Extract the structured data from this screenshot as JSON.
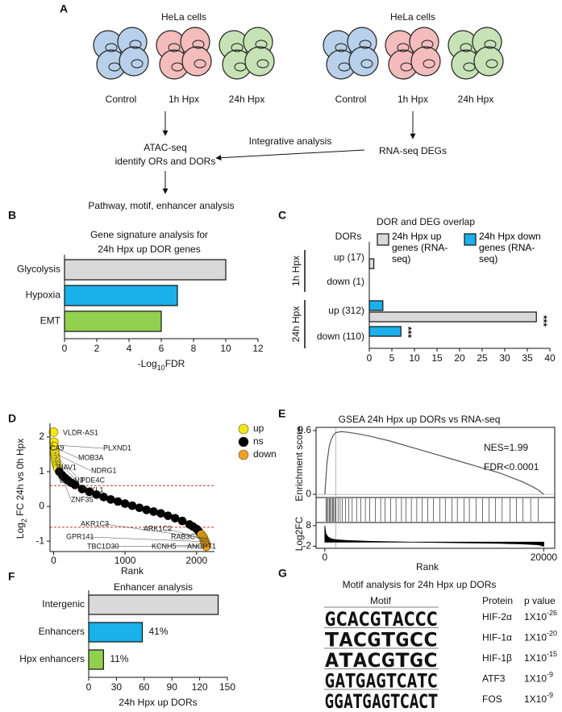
{
  "panel_labels": [
    "A",
    "B",
    "C",
    "D",
    "E",
    "F",
    "G"
  ],
  "diagram": {
    "left": {
      "title": "HeLa cells",
      "conditions": [
        "Control",
        "1h Hpx",
        "24h Hpx"
      ]
    },
    "right": {
      "title": "HeLa cells",
      "conditions": [
        "Control",
        "1h Hpx",
        "24h Hpx"
      ]
    },
    "atac": [
      "ATAC-seq",
      "identify ORs and DORs"
    ],
    "rna": "RNA-seq DEGs",
    "integrative": "Integrative analysis",
    "downstream": "Pathway, motif, enhancer analysis"
  },
  "chart_data": [
    {
      "type": "hbar",
      "title": [
        "Gene signature analysis for",
        "24h Hpx up DOR genes"
      ],
      "categories": [
        "Glycolysis",
        "Hypoxia",
        "EMT"
      ],
      "values": [
        10,
        7,
        6
      ],
      "colors": [
        "#d9d9d9",
        "#1ab0ea",
        "#92d050"
      ],
      "xlim": [
        0,
        12
      ],
      "xticks": [
        0,
        2,
        4,
        6,
        8,
        10,
        12
      ],
      "xlabel": [
        "-Log",
        "10",
        "FDR"
      ]
    },
    {
      "type": "grouped_hbar",
      "title": "DOR and DEG overlap",
      "axis_title": "DORs",
      "groups": [
        "1h Hpx",
        "24h Hpx"
      ],
      "categories": [
        "up (17)",
        "down (1)",
        "up (312)",
        "down (110)"
      ],
      "series": [
        {
          "name": "24h Hpx up genes (RNA-seq)",
          "color": "#d9d9d9",
          "values": [
            1,
            0,
            37,
            0
          ]
        },
        {
          "name": "24h Hpx down genes (RNA-seq)",
          "color": "#1ab0ea",
          "values": [
            0,
            0,
            3,
            7
          ]
        }
      ],
      "xlim": [
        0,
        40
      ],
      "xticks": [
        0,
        5,
        10,
        15,
        20,
        25,
        30,
        35,
        40
      ],
      "annotations": [
        "***",
        "***"
      ]
    },
    {
      "type": "scatter",
      "ylabel": [
        "Log",
        "2",
        " FC 24h vs 0h Hpx"
      ],
      "xlabel": "Rank",
      "series": [
        {
          "name": "up",
          "color": "#f5e616",
          "x": [
            0,
            5,
            10,
            15,
            20,
            25,
            30,
            35,
            40,
            50,
            60
          ],
          "values": [
            2.14,
            1.85,
            1.72,
            1.6,
            1.5,
            1.42,
            1.35,
            1.28,
            1.22,
            1.16,
            1.1
          ]
        },
        {
          "name": "ns",
          "color": "#000000",
          "x": [
            80,
            120,
            160,
            200,
            250,
            300,
            400,
            500,
            600,
            700,
            800,
            900,
            1000,
            1100,
            1200,
            1300,
            1400,
            1500,
            1600,
            1700,
            1800,
            1900,
            1950,
            2000,
            2030,
            2050
          ],
          "values": [
            1.0,
            0.9,
            0.82,
            0.75,
            0.68,
            0.62,
            0.5,
            0.42,
            0.34,
            0.27,
            0.2,
            0.14,
            0.08,
            0.02,
            -0.04,
            -0.1,
            -0.15,
            -0.2,
            -0.27,
            -0.34,
            -0.42,
            -0.52,
            -0.58,
            -0.65,
            -0.72,
            -0.78
          ]
        },
        {
          "name": "down",
          "color": "#f0a020",
          "x": [
            2070,
            2090,
            2100,
            2110,
            2120,
            2125,
            2130,
            2135
          ],
          "values": [
            -0.82,
            -0.88,
            -0.93,
            -0.98,
            -1.02,
            -1.06,
            -1.1,
            -1.15
          ]
        }
      ],
      "xlim": [
        -50,
        2250
      ],
      "xticks": [
        0,
        1000,
        2000
      ],
      "ylim": [
        -1.3,
        2.3
      ],
      "yticks": [
        -1,
        0,
        1,
        2
      ],
      "hlines": [
        0.6,
        -0.6
      ],
      "hline_color": "#c0392b",
      "gene_labels": [
        "VLDR-AS1",
        "CA9",
        "PLXND1",
        "MOB3A",
        "NAV1",
        "NDRG1",
        "PDE4C",
        "EGLN3",
        "UKL1",
        "ZNF35",
        "AKR1C3",
        "ARK1C2",
        "GPR141",
        "RAB3C",
        "TBC1D30",
        "KCNH5",
        "ANGPT1"
      ]
    },
    {
      "type": "gsea",
      "title": "GSEA 24h Hpx up DORs vs RNA-seq",
      "color": "#555555",
      "x": [
        0,
        200,
        400,
        600,
        800,
        1000,
        1500,
        2000,
        3000,
        4000,
        6000,
        8000,
        10000,
        12000,
        14000,
        16000,
        18000,
        19000,
        19500,
        20000
      ],
      "values": [
        0,
        0.3,
        0.45,
        0.52,
        0.56,
        0.58,
        0.59,
        0.585,
        0.57,
        0.55,
        0.5,
        0.44,
        0.38,
        0.32,
        0.26,
        0.2,
        0.12,
        0.07,
        0.04,
        0
      ],
      "xlim": [
        -800,
        21000
      ],
      "xticks": [
        0,
        20000
      ],
      "ylim": [
        -0.03,
        0.63
      ],
      "yticks": [
        0,
        0.6
      ],
      "ylabel": "Enrichment score",
      "xlabel": "Rank",
      "annotations": [
        "NES=1.99",
        "FDR<0.0001"
      ],
      "vline": 1000,
      "hits": [
        100,
        200,
        300,
        400,
        500,
        600,
        700,
        800,
        900,
        1000,
        1200,
        1400,
        1600,
        1900,
        2200,
        2500,
        2900,
        3300,
        3700,
        4100,
        4600,
        5100,
        5500,
        6000,
        6500,
        7000,
        7400,
        7900,
        8400,
        8900,
        9400,
        9900,
        10500,
        11000,
        11600,
        12100,
        12700,
        13200,
        13800,
        14400,
        15000,
        15600,
        16200,
        16900,
        17500,
        18100,
        18800,
        19500
      ],
      "log2fc": {
        "x": [
          0,
          100,
          300,
          600,
          1000,
          2000,
          4000,
          8000,
          12000,
          16000,
          18000,
          19500,
          20000
        ],
        "values": [
          8,
          4,
          2.5,
          1.6,
          1.2,
          0.8,
          0.4,
          0,
          -0.3,
          -0.6,
          -0.9,
          -1.3,
          -2
        ],
        "ylim": [
          -3,
          9.5
        ],
        "yticks": [
          -2,
          8
        ],
        "ylabel": "Log2FC",
        "color": "#000000"
      }
    },
    {
      "type": "hbar",
      "title": [
        "Enhancer analysis"
      ],
      "categories": [
        "Intergenic",
        "Enhancers",
        "Hpx enhancers"
      ],
      "values": [
        140,
        58,
        16
      ],
      "colors": [
        "#d9d9d9",
        "#1ab0ea",
        "#92d050"
      ],
      "annotations": [
        "41%",
        "11%"
      ],
      "xlim": [
        0,
        150
      ],
      "xticks": [
        0,
        30,
        60,
        90,
        120,
        150
      ],
      "xlabel": [
        "24h Hpx up DORs"
      ]
    }
  ],
  "motif_table": {
    "title": "Motif analysis for 24h Hpx up DORs",
    "header": [
      "Motif",
      "Protein",
      "p value"
    ],
    "letter_colors": {
      "A": "#1fa33b",
      "C": "#1f5fd6",
      "G": "#f0a000",
      "T": "#e0201b"
    },
    "rows": [
      {
        "motif": [
          "G",
          "C",
          "A",
          "C",
          "G",
          "T",
          "A",
          "C",
          "C",
          "C"
        ],
        "protein": "HIF-2α",
        "p": [
          "1X10",
          "-26"
        ]
      },
      {
        "motif": [
          "T",
          "A",
          "C",
          "G",
          "T",
          "G",
          "C",
          "C"
        ],
        "protein": "HIF-1α",
        "p": [
          "1X10",
          "-20"
        ]
      },
      {
        "motif": [
          "A",
          "T",
          "A",
          "C",
          "G",
          "T",
          "G",
          "C"
        ],
        "protein": "HIF-1β",
        "p": [
          "1X10",
          "-15"
        ]
      },
      {
        "motif": [
          "G",
          "A",
          "T",
          "G",
          "A",
          "G",
          "T",
          "C",
          "A",
          "T",
          "C"
        ],
        "protein": "ATF3",
        "p": [
          "1X10",
          "-9"
        ]
      },
      {
        "motif": [
          "G",
          "G",
          "A",
          "T",
          "G",
          "A",
          "G",
          "T",
          "C",
          "A",
          "C",
          "T"
        ],
        "protein": "FOS",
        "p": [
          "1X10",
          "-9"
        ]
      }
    ]
  }
}
